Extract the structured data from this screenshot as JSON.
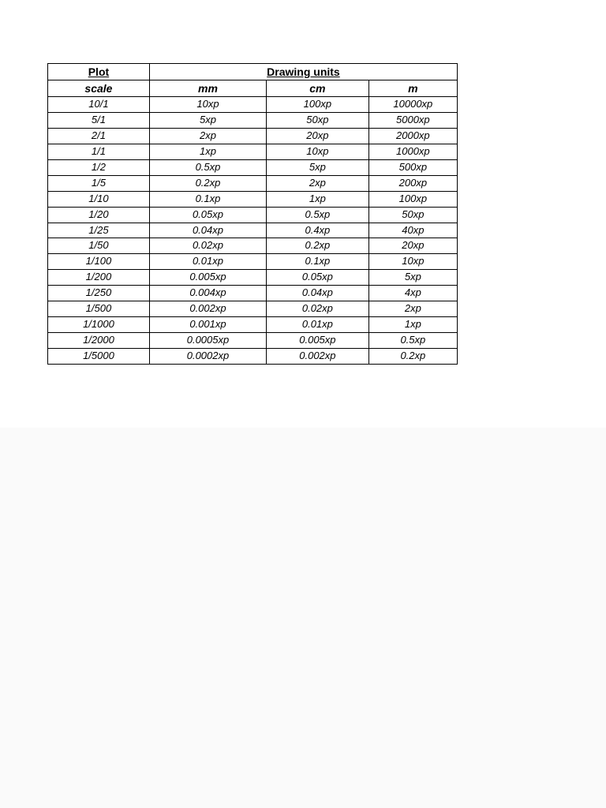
{
  "table": {
    "type": "table",
    "background_color": "#ffffff",
    "border_color": "#000000",
    "font_family": "Arial",
    "header_top": {
      "plot": "Plot",
      "drawing_units": "Drawing units"
    },
    "header_sub": {
      "scale": "scale",
      "mm": "mm",
      "cm": "cm",
      "m": "m"
    },
    "rows": [
      {
        "scale": "10/1",
        "mm": "10xp",
        "cm": "100xp",
        "m": "10000xp"
      },
      {
        "scale": "5/1",
        "mm": "5xp",
        "cm": "50xp",
        "m": "5000xp"
      },
      {
        "scale": "2/1",
        "mm": "2xp",
        "cm": "20xp",
        "m": "2000xp"
      },
      {
        "scale": "1/1",
        "mm": "1xp",
        "cm": "10xp",
        "m": "1000xp"
      },
      {
        "scale": "1/2",
        "mm": "0.5xp",
        "cm": "5xp",
        "m": "500xp"
      },
      {
        "scale": "1/5",
        "mm": "0.2xp",
        "cm": "2xp",
        "m": "200xp"
      },
      {
        "scale": "1/10",
        "mm": "0.1xp",
        "cm": "1xp",
        "m": "100xp"
      },
      {
        "scale": "1/20",
        "mm": "0.05xp",
        "cm": "0.5xp",
        "m": "50xp"
      },
      {
        "scale": "1/25",
        "mm": "0.04xp",
        "cm": "0.4xp",
        "m": "40xp"
      },
      {
        "scale": "1/50",
        "mm": "0.02xp",
        "cm": "0.2xp",
        "m": "20xp"
      },
      {
        "scale": "1/100",
        "mm": "0.01xp",
        "cm": "0.1xp",
        "m": "10xp"
      },
      {
        "scale": "1/200",
        "mm": "0.005xp",
        "cm": "0.05xp",
        "m": "5xp"
      },
      {
        "scale": "1/250",
        "mm": "0.004xp",
        "cm": "0.04xp",
        "m": "4xp"
      },
      {
        "scale": "1/500",
        "mm": "0.002xp",
        "cm": "0.02xp",
        "m": "2xp"
      },
      {
        "scale": "1/1000",
        "mm": "0.001xp",
        "cm": "0.01xp",
        "m": "1xp"
      },
      {
        "scale": "1/2000",
        "mm": "0.0005xp",
        "cm": "0.005xp",
        "m": "0.5xp"
      },
      {
        "scale": "1/5000",
        "mm": "0.0002xp",
        "cm": "0.002xp",
        "m": "0.2xp"
      }
    ]
  }
}
